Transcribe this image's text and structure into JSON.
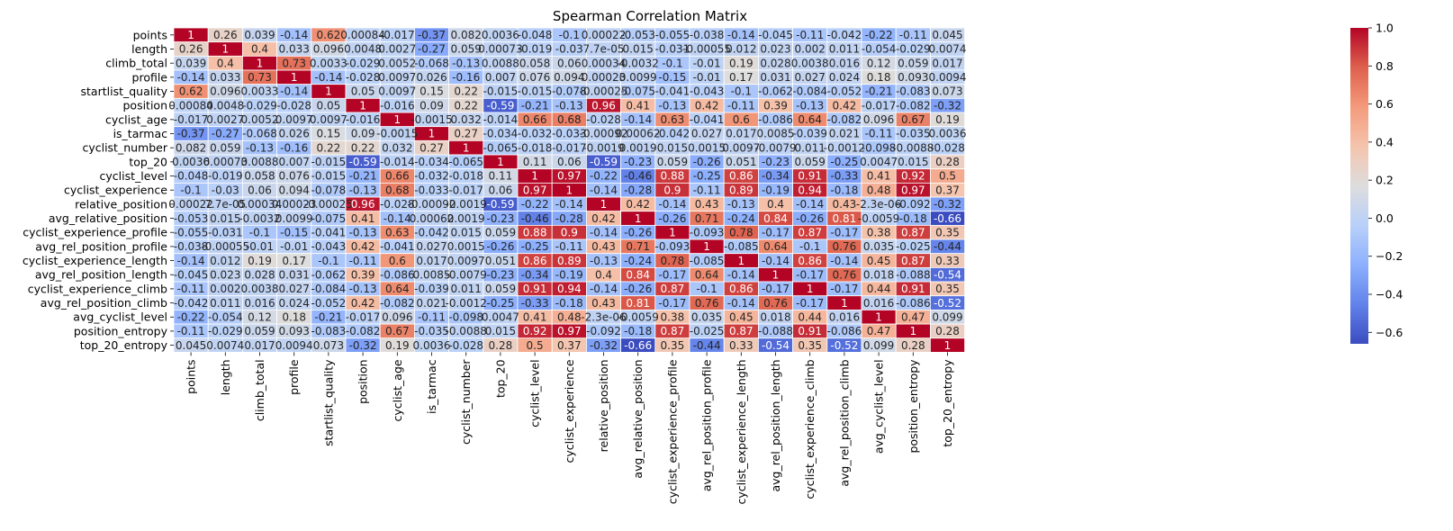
{
  "chart_data": {
    "type": "heatmap",
    "title": "Spearman Correlation Matrix",
    "xlabel": "",
    "ylabel": "",
    "labels": [
      "points",
      "length",
      "climb_total",
      "profile",
      "startlist_quality",
      "position",
      "cyclist_age",
      "is_tarmac",
      "cyclist_number",
      "top_20",
      "cyclist_level",
      "cyclist_experience",
      "relative_position",
      "avg_relative_position",
      "cyclist_experience_profile",
      "avg_rel_position_profile",
      "cyclist_experience_length",
      "avg_rel_position_length",
      "cyclist_experience_climb",
      "avg_rel_position_climb",
      "avg_cyclist_level",
      "position_entropy",
      "top_20_entropy"
    ],
    "values": [
      [
        1,
        0.26,
        0.039,
        -0.14,
        0.62,
        0.00084,
        -0.017,
        -0.37,
        0.082,
        0.0036,
        -0.048,
        -0.1,
        0.00022,
        -0.053,
        -0.055,
        -0.038,
        -0.14,
        -0.045,
        -0.11,
        -0.042,
        -0.22,
        -0.11,
        0.045
      ],
      [
        0.26,
        1,
        0.4,
        0.033,
        0.096,
        0.0048,
        0.0027,
        -0.27,
        0.059,
        0.00073,
        -0.019,
        -0.03,
        7.7e-05,
        0.015,
        -0.031,
        -0.00055,
        0.012,
        0.023,
        0.002,
        0.011,
        -0.054,
        -0.029,
        0.0074
      ],
      [
        0.039,
        0.4,
        1,
        0.73,
        0.0033,
        -0.029,
        0.0052,
        -0.068,
        -0.13,
        0.0088,
        0.058,
        0.06,
        0.00034,
        -0.0032,
        -0.1,
        -0.01,
        0.19,
        0.028,
        0.0038,
        0.016,
        0.12,
        0.059,
        0.017
      ],
      [
        -0.14,
        0.033,
        0.73,
        1,
        -0.14,
        -0.028,
        0.0097,
        0.026,
        -0.16,
        0.007,
        0.076,
        0.094,
        0.00023,
        0.0099,
        -0.15,
        -0.01,
        0.17,
        0.031,
        0.027,
        0.024,
        0.18,
        0.093,
        0.0094
      ],
      [
        0.62,
        0.096,
        0.0033,
        -0.14,
        1,
        0.05,
        0.0097,
        0.15,
        0.22,
        -0.015,
        -0.015,
        -0.078,
        -0.00025,
        -0.075,
        -0.041,
        -0.043,
        -0.1,
        -0.062,
        -0.084,
        -0.052,
        -0.21,
        -0.083,
        0.073
      ],
      [
        0.00084,
        0.0048,
        -0.029,
        -0.028,
        0.05,
        1,
        -0.016,
        0.09,
        0.22,
        -0.59,
        -0.21,
        -0.13,
        0.96,
        0.41,
        -0.13,
        0.42,
        -0.11,
        0.39,
        -0.13,
        0.42,
        -0.017,
        -0.082,
        -0.32
      ],
      [
        -0.017,
        0.0027,
        0.0052,
        0.0097,
        0.0097,
        -0.016,
        1,
        -0.0015,
        0.032,
        -0.014,
        0.66,
        0.68,
        -0.028,
        -0.14,
        0.63,
        -0.041,
        0.6,
        -0.086,
        0.64,
        -0.082,
        0.096,
        0.67,
        0.19
      ],
      [
        -0.37,
        -0.27,
        -0.068,
        0.026,
        0.15,
        0.09,
        -0.0015,
        1,
        0.27,
        -0.034,
        -0.032,
        -0.033,
        -0.00092,
        0.00062,
        -0.042,
        0.027,
        0.017,
        0.0085,
        -0.039,
        0.021,
        -0.11,
        -0.035,
        0.0036
      ],
      [
        0.082,
        0.059,
        -0.13,
        -0.16,
        0.22,
        0.22,
        0.032,
        0.27,
        1,
        -0.065,
        -0.018,
        -0.017,
        -0.0019,
        0.0019,
        0.015,
        0.0015,
        0.0097,
        -0.0079,
        0.011,
        -0.0012,
        -0.098,
        -0.0088,
        -0.028
      ],
      [
        0.0036,
        0.00073,
        0.0088,
        0.007,
        -0.015,
        -0.59,
        -0.014,
        -0.034,
        -0.065,
        1,
        0.11,
        0.06,
        -0.59,
        -0.23,
        0.059,
        -0.26,
        0.051,
        -0.23,
        0.059,
        -0.25,
        0.0047,
        0.015,
        0.28
      ],
      [
        -0.048,
        -0.019,
        0.058,
        0.076,
        -0.015,
        -0.21,
        0.66,
        -0.032,
        -0.018,
        0.11,
        1,
        0.97,
        -0.22,
        -0.46,
        0.88,
        -0.25,
        0.86,
        -0.34,
        0.91,
        -0.33,
        0.41,
        0.92,
        0.5
      ],
      [
        -0.1,
        -0.03,
        0.06,
        0.094,
        -0.078,
        -0.13,
        0.68,
        -0.033,
        -0.017,
        0.06,
        0.97,
        1,
        -0.14,
        -0.28,
        0.9,
        -0.11,
        0.89,
        -0.19,
        0.94,
        -0.18,
        0.48,
        0.97,
        0.37
      ],
      [
        0.00022,
        7.7e-05,
        0.00034,
        0.00023,
        -0.00025,
        0.96,
        -0.028,
        -0.00092,
        -0.0019,
        -0.59,
        -0.22,
        -0.14,
        1,
        0.42,
        -0.14,
        0.43,
        -0.13,
        0.4,
        -0.14,
        0.43,
        -2.3e-06,
        -0.092,
        -0.32
      ],
      [
        -0.053,
        0.015,
        -0.0032,
        0.0099,
        -0.075,
        0.41,
        -0.14,
        0.00062,
        0.0019,
        -0.23,
        -0.46,
        -0.28,
        0.42,
        1,
        -0.26,
        0.71,
        -0.24,
        0.84,
        -0.26,
        0.81,
        -0.0059,
        -0.18,
        -0.66
      ],
      [
        -0.055,
        -0.031,
        -0.1,
        -0.15,
        -0.041,
        -0.13,
        0.63,
        -0.042,
        0.015,
        0.059,
        0.88,
        0.9,
        -0.14,
        -0.26,
        1,
        -0.093,
        0.78,
        -0.17,
        0.87,
        -0.17,
        0.38,
        0.87,
        0.35
      ],
      [
        -0.038,
        -0.00055,
        -0.01,
        -0.01,
        -0.043,
        0.42,
        -0.041,
        0.027,
        0.0015,
        -0.26,
        -0.25,
        -0.11,
        0.43,
        0.71,
        -0.093,
        1,
        -0.085,
        0.64,
        -0.1,
        0.76,
        0.035,
        -0.025,
        -0.44
      ],
      [
        -0.14,
        0.012,
        0.19,
        0.17,
        -0.1,
        -0.11,
        0.6,
        0.017,
        0.0097,
        0.051,
        0.86,
        0.89,
        -0.13,
        -0.24,
        0.78,
        -0.085,
        1,
        -0.14,
        0.86,
        -0.14,
        0.45,
        0.87,
        0.33
      ],
      [
        -0.045,
        0.023,
        0.028,
        0.031,
        -0.062,
        0.39,
        -0.086,
        0.0085,
        -0.0079,
        -0.23,
        -0.34,
        -0.19,
        0.4,
        0.84,
        -0.17,
        0.64,
        -0.14,
        1,
        -0.17,
        0.76,
        0.018,
        -0.088,
        -0.54
      ],
      [
        -0.11,
        0.002,
        0.0038,
        0.027,
        -0.084,
        -0.13,
        0.64,
        -0.039,
        0.011,
        0.059,
        0.91,
        0.94,
        -0.14,
        -0.26,
        0.87,
        -0.1,
        0.86,
        -0.17,
        1,
        -0.17,
        0.44,
        0.91,
        0.35
      ],
      [
        -0.042,
        0.011,
        0.016,
        0.024,
        -0.052,
        0.42,
        -0.082,
        0.021,
        -0.0012,
        -0.25,
        -0.33,
        -0.18,
        0.43,
        0.81,
        -0.17,
        0.76,
        -0.14,
        0.76,
        -0.17,
        1,
        0.016,
        -0.086,
        -0.52
      ],
      [
        -0.22,
        -0.054,
        0.12,
        0.18,
        -0.21,
        -0.017,
        0.096,
        -0.11,
        -0.098,
        0.0047,
        0.41,
        0.48,
        -2.3e-06,
        -0.0059,
        0.38,
        0.035,
        0.45,
        0.018,
        0.44,
        0.016,
        1,
        0.47,
        0.099
      ],
      [
        -0.11,
        -0.029,
        0.059,
        0.093,
        -0.083,
        -0.082,
        0.67,
        -0.035,
        -0.0088,
        0.015,
        0.92,
        0.97,
        -0.092,
        -0.18,
        0.87,
        -0.025,
        0.87,
        -0.088,
        0.91,
        -0.086,
        0.47,
        1,
        0.28
      ],
      [
        0.045,
        0.0074,
        0.017,
        0.0094,
        0.073,
        -0.32,
        0.19,
        0.0036,
        -0.028,
        0.28,
        0.5,
        0.37,
        -0.32,
        -0.66,
        0.35,
        -0.44,
        0.33,
        -0.54,
        0.35,
        -0.52,
        0.099,
        0.28,
        1
      ]
    ],
    "cell_text": [
      [
        "1",
        "0.26",
        "0.039",
        "-0.14",
        "0.62",
        "0.00084",
        "-0.017",
        "-0.37",
        "0.082",
        "0.0036",
        "-0.048",
        "-0.1",
        "0.00022",
        "-0.053",
        "-0.055",
        "-0.038",
        "-0.14",
        "-0.045",
        "-0.11",
        "-0.042",
        "-0.22",
        "-0.11",
        "0.045"
      ],
      [
        "0.26",
        "1",
        "0.4",
        "0.033",
        "0.096",
        "0.0048",
        "0.0027",
        "-0.27",
        "0.059",
        "0.00073",
        "-0.019",
        "-0.03",
        "7.7e-05",
        "0.015",
        "-0.031",
        "-0.00055",
        "0.012",
        "0.023",
        "0.002",
        "0.011",
        "-0.054",
        "-0.029",
        "0.0074"
      ],
      [
        "0.039",
        "0.4",
        "1",
        "0.73",
        "0.0033",
        "-0.029",
        "0.0052",
        "-0.068",
        "-0.13",
        "0.0088",
        "0.058",
        "0.06",
        "0.00034",
        "-0.0032",
        "-0.1",
        "-0.01",
        "0.19",
        "0.028",
        "0.0038",
        "0.016",
        "0.12",
        "0.059",
        "0.017"
      ],
      [
        "-0.14",
        "0.033",
        "0.73",
        "1",
        "-0.14",
        "-0.028",
        "0.0097",
        "0.026",
        "-0.16",
        "0.007",
        "0.076",
        "0.094",
        "0.00023",
        "0.0099",
        "-0.15",
        "-0.01",
        "0.17",
        "0.031",
        "0.027",
        "0.024",
        "0.18",
        "0.093",
        "0.0094"
      ],
      [
        "0.62",
        "0.096",
        "0.0033",
        "-0.14",
        "1",
        "0.05",
        "0.0097",
        "0.15",
        "0.22",
        "-0.015",
        "-0.015",
        "-0.078",
        "-0.00025",
        "-0.075",
        "-0.041",
        "-0.043",
        "-0.1",
        "-0.062",
        "-0.084",
        "-0.052",
        "-0.21",
        "-0.083",
        "0.073"
      ],
      [
        "0.00084",
        "0.0048",
        "-0.029",
        "-0.028",
        "0.05",
        "1",
        "-0.016",
        "0.09",
        "0.22",
        "-0.59",
        "-0.21",
        "-0.13",
        "0.96",
        "0.41",
        "-0.13",
        "0.42",
        "-0.11",
        "0.39",
        "-0.13",
        "0.42",
        "-0.017",
        "-0.082",
        "-0.32"
      ],
      [
        "-0.017",
        "0.0027",
        "0.0052",
        "0.0097",
        "0.0097",
        "-0.016",
        "1",
        "-0.0015",
        "0.032",
        "-0.014",
        "0.66",
        "0.68",
        "-0.028",
        "-0.14",
        "0.63",
        "-0.041",
        "0.6",
        "-0.086",
        "0.64",
        "-0.082",
        "0.096",
        "0.67",
        "0.19"
      ],
      [
        "-0.37",
        "-0.27",
        "-0.068",
        "0.026",
        "0.15",
        "0.09",
        "-0.0015",
        "1",
        "0.27",
        "-0.034",
        "-0.032",
        "-0.033",
        "-0.00092",
        "0.00062",
        "-0.042",
        "0.027",
        "0.017",
        "0.0085",
        "-0.039",
        "0.021",
        "-0.11",
        "-0.035",
        "0.0036"
      ],
      [
        "0.082",
        "0.059",
        "-0.13",
        "-0.16",
        "0.22",
        "0.22",
        "0.032",
        "0.27",
        "1",
        "-0.065",
        "-0.018",
        "-0.017",
        "-0.0019",
        "0.0019",
        "0.015",
        "0.0015",
        "0.0097",
        "-0.0079",
        "0.011",
        "-0.0012",
        "-0.098",
        "-0.0088",
        "-0.028"
      ],
      [
        "0.0036",
        "0.00073",
        "0.0088",
        "0.007",
        "-0.015",
        "-0.59",
        "-0.014",
        "-0.034",
        "-0.065",
        "1",
        "0.11",
        "0.06",
        "-0.59",
        "-0.23",
        "0.059",
        "-0.26",
        "0.051",
        "-0.23",
        "0.059",
        "-0.25",
        "0.0047",
        "0.015",
        "0.28"
      ],
      [
        "-0.048",
        "-0.019",
        "0.058",
        "0.076",
        "-0.015",
        "-0.21",
        "0.66",
        "-0.032",
        "-0.018",
        "0.11",
        "1",
        "0.97",
        "-0.22",
        "-0.46",
        "0.88",
        "-0.25",
        "0.86",
        "-0.34",
        "0.91",
        "-0.33",
        "0.41",
        "0.92",
        "0.5"
      ],
      [
        "-0.1",
        "-0.03",
        "0.06",
        "0.094",
        "-0.078",
        "-0.13",
        "0.68",
        "-0.033",
        "-0.017",
        "0.06",
        "0.97",
        "1",
        "-0.14",
        "-0.28",
        "0.9",
        "-0.11",
        "0.89",
        "-0.19",
        "0.94",
        "-0.18",
        "0.48",
        "0.97",
        "0.37"
      ],
      [
        "0.00022",
        "7.7e-05",
        "0.00034",
        "0.00023",
        "-0.00025",
        "0.96",
        "-0.028",
        "-0.00092",
        "-0.0019",
        "-0.59",
        "-0.22",
        "-0.14",
        "1",
        "0.42",
        "-0.14",
        "0.43",
        "-0.13",
        "0.4",
        "-0.14",
        "0.43",
        "-2.3e-06",
        "-0.092",
        "-0.32"
      ],
      [
        "-0.053",
        "0.015",
        "-0.0032",
        "0.0099",
        "-0.075",
        "0.41",
        "-0.14",
        "0.00062",
        "0.0019",
        "-0.23",
        "-0.46",
        "-0.28",
        "0.42",
        "1",
        "-0.26",
        "0.71",
        "-0.24",
        "0.84",
        "-0.26",
        "0.81",
        "-0.0059",
        "-0.18",
        "-0.66"
      ],
      [
        "-0.055",
        "-0.031",
        "-0.1",
        "-0.15",
        "-0.041",
        "-0.13",
        "0.63",
        "-0.042",
        "0.015",
        "0.059",
        "0.88",
        "0.9",
        "-0.14",
        "-0.26",
        "1",
        "-0.093",
        "0.78",
        "-0.17",
        "0.87",
        "-0.17",
        "0.38",
        "0.87",
        "0.35"
      ],
      [
        "-0.038",
        "-0.00055",
        "-0.01",
        "-0.01",
        "-0.043",
        "0.42",
        "-0.041",
        "0.027",
        "0.0015",
        "-0.26",
        "-0.25",
        "-0.11",
        "0.43",
        "0.71",
        "-0.093",
        "1",
        "-0.085",
        "0.64",
        "-0.1",
        "0.76",
        "0.035",
        "-0.025",
        "-0.44"
      ],
      [
        "-0.14",
        "0.012",
        "0.19",
        "0.17",
        "-0.1",
        "-0.11",
        "0.6",
        "0.017",
        "0.0097",
        "0.051",
        "0.86",
        "0.89",
        "-0.13",
        "-0.24",
        "0.78",
        "-0.085",
        "1",
        "-0.14",
        "0.86",
        "-0.14",
        "0.45",
        "0.87",
        "0.33"
      ],
      [
        "-0.045",
        "0.023",
        "0.028",
        "0.031",
        "-0.062",
        "0.39",
        "-0.086",
        "0.0085",
        "-0.0079",
        "-0.23",
        "-0.34",
        "-0.19",
        "0.4",
        "0.84",
        "-0.17",
        "0.64",
        "-0.14",
        "1",
        "-0.17",
        "0.76",
        "0.018",
        "-0.088",
        "-0.54"
      ],
      [
        "-0.11",
        "0.002",
        "0.0038",
        "0.027",
        "-0.084",
        "-0.13",
        "0.64",
        "-0.039",
        "0.011",
        "0.059",
        "0.91",
        "0.94",
        "-0.14",
        "-0.26",
        "0.87",
        "-0.1",
        "0.86",
        "-0.17",
        "1",
        "-0.17",
        "0.44",
        "0.91",
        "0.35"
      ],
      [
        "-0.042",
        "0.011",
        "0.016",
        "0.024",
        "-0.052",
        "0.42",
        "-0.082",
        "0.021",
        "-0.0012",
        "-0.25",
        "-0.33",
        "-0.18",
        "0.43",
        "0.81",
        "-0.17",
        "0.76",
        "-0.14",
        "0.76",
        "-0.17",
        "1",
        "0.016",
        "-0.086",
        "-0.52"
      ],
      [
        "-0.22",
        "-0.054",
        "0.12",
        "0.18",
        "-0.21",
        "-0.017",
        "0.096",
        "-0.11",
        "-0.098",
        "0.0047",
        "0.41",
        "0.48",
        "-2.3e-06",
        "-0.0059",
        "0.38",
        "0.035",
        "0.45",
        "0.018",
        "0.44",
        "0.016",
        "1",
        "0.47",
        "0.099"
      ],
      [
        "-0.11",
        "-0.029",
        "0.059",
        "0.093",
        "-0.083",
        "-0.082",
        "0.67",
        "-0.035",
        "-0.0088",
        "0.015",
        "0.92",
        "0.97",
        "-0.092",
        "-0.18",
        "0.87",
        "-0.025",
        "0.87",
        "-0.088",
        "0.91",
        "-0.086",
        "0.47",
        "1",
        "0.28"
      ],
      [
        "0.045",
        "0.0074",
        "0.017",
        "0.0094",
        "0.073",
        "-0.32",
        "0.19",
        "0.0036",
        "-0.028",
        "0.28",
        "0.5",
        "0.37",
        "-0.32",
        "-0.66",
        "0.35",
        "-0.44",
        "0.33",
        "-0.54",
        "0.35",
        "-0.52",
        "0.099",
        "0.28",
        "1"
      ]
    ],
    "colorbar": {
      "colormap": "coolwarm",
      "vmin": -0.66,
      "vmax": 1,
      "ticks": [
        -0.6,
        -0.4,
        -0.2,
        0.0,
        0.2,
        0.4,
        0.6,
        0.8,
        1.0
      ],
      "tick_labels": [
        "−0.6",
        "−0.4",
        "−0.2",
        "0.0",
        "0.2",
        "0.4",
        "0.6",
        "0.8",
        "1.0"
      ]
    },
    "grid": "white cell borders",
    "legend": "colorbar-right"
  }
}
